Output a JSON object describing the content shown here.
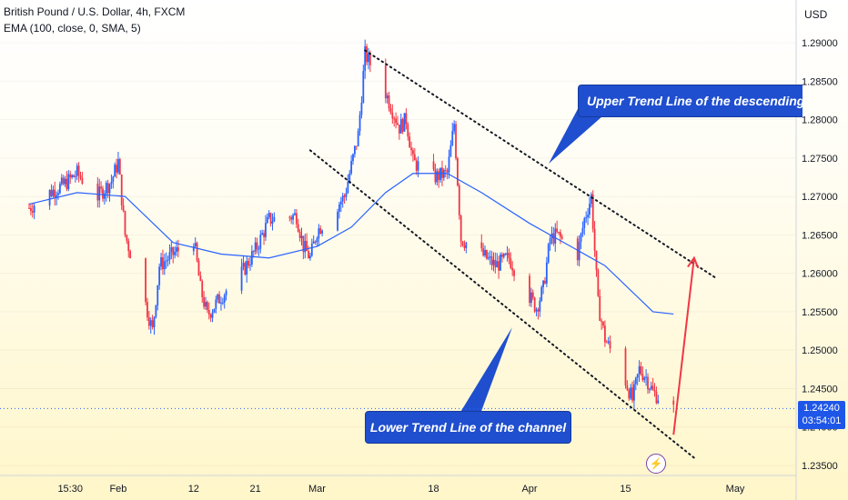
{
  "header": {
    "title": "British Pound / U.S. Dollar, 4h, FXCM",
    "indicator": "EMA (100, close, 0, SMA, 5)"
  },
  "axis": {
    "currency": "USD",
    "last_price": "1.24240",
    "countdown": "03:54:01"
  },
  "annotations": {
    "upper": "Upper Trend Line of the descending",
    "lower": "Lower Trend Line of the channel"
  },
  "colors": {
    "up": "#2962ff",
    "down": "#f23645",
    "ema": "#2962ff",
    "label_bg": "#1f4fcf",
    "arrow": "#f23645"
  },
  "chart_data": {
    "type": "candlestick",
    "symbol": "GBPUSD",
    "timeframe": "4h",
    "ylim": [
      1.2335,
      1.2915
    ],
    "yticks": [
      "1.29000",
      "1.28500",
      "1.28000",
      "1.27500",
      "1.27000",
      "1.26500",
      "1.26000",
      "1.25500",
      "1.25000",
      "1.24500",
      "1.24000",
      "1.23500"
    ],
    "xticks": [
      {
        "label": "15:30",
        "date": "2024-01-25"
      },
      {
        "label": "Feb",
        "date": "2024-02-01"
      },
      {
        "label": "12",
        "date": "2024-02-12"
      },
      {
        "label": "21",
        "date": "2024-02-21"
      },
      {
        "label": "Mar",
        "date": "2024-03-01"
      },
      {
        "label": "18",
        "date": "2024-03-18"
      },
      {
        "label": "Apr",
        "date": "2024-04-01"
      },
      {
        "label": "15",
        "date": "2024-04-15"
      },
      {
        "label": "May",
        "date": "2024-05-01"
      }
    ],
    "xlim": [
      "2024-01-19",
      "2024-05-14"
    ],
    "price_path": [
      [
        "2024-01-19",
        1.2685
      ],
      [
        "2024-01-22",
        1.2705
      ],
      [
        "2024-01-24",
        1.2715
      ],
      [
        "2024-01-26",
        1.273
      ],
      [
        "2024-01-29",
        1.27
      ],
      [
        "2024-01-31",
        1.272
      ],
      [
        "2024-02-01",
        1.2745
      ],
      [
        "2024-02-02",
        1.265
      ],
      [
        "2024-02-05",
        1.256
      ],
      [
        "2024-02-06",
        1.2525
      ],
      [
        "2024-02-07",
        1.261
      ],
      [
        "2024-02-09",
        1.2625
      ],
      [
        "2024-02-12",
        1.2645
      ],
      [
        "2024-02-13",
        1.258
      ],
      [
        "2024-02-14",
        1.2545
      ],
      [
        "2024-02-16",
        1.257
      ],
      [
        "2024-02-19",
        1.26
      ],
      [
        "2024-02-21",
        1.263
      ],
      [
        "2024-02-23",
        1.267
      ],
      [
        "2024-02-27",
        1.2675
      ],
      [
        "2024-02-28",
        1.2635
      ],
      [
        "2024-02-29",
        1.262
      ],
      [
        "2024-03-01",
        1.2655
      ],
      [
        "2024-03-05",
        1.27
      ],
      [
        "2024-03-07",
        1.278
      ],
      [
        "2024-03-08",
        1.2885
      ],
      [
        "2024-03-11",
        1.2835
      ],
      [
        "2024-03-13",
        1.279
      ],
      [
        "2024-03-14",
        1.28
      ],
      [
        "2024-03-15",
        1.2745
      ],
      [
        "2024-03-18",
        1.2725
      ],
      [
        "2024-03-20",
        1.273
      ],
      [
        "2024-03-21",
        1.2795
      ],
      [
        "2024-03-22",
        1.2645
      ],
      [
        "2024-03-25",
        1.2625
      ],
      [
        "2024-03-27",
        1.261
      ],
      [
        "2024-03-29",
        1.262
      ],
      [
        "2024-04-01",
        1.257
      ],
      [
        "2024-04-02",
        1.2555
      ],
      [
        "2024-04-03",
        1.258
      ],
      [
        "2024-04-04",
        1.2645
      ],
      [
        "2024-04-05",
        1.265
      ],
      [
        "2024-04-08",
        1.2625
      ],
      [
        "2024-04-09",
        1.267
      ],
      [
        "2024-04-10",
        1.27
      ],
      [
        "2024-04-11",
        1.256
      ],
      [
        "2024-04-12",
        1.2515
      ],
      [
        "2024-04-15",
        1.246
      ],
      [
        "2024-04-16",
        1.2435
      ],
      [
        "2024-04-17",
        1.2475
      ],
      [
        "2024-04-18",
        1.2465
      ],
      [
        "2024-04-19",
        1.2445
      ],
      [
        "2024-04-22",
        1.2424
      ]
    ],
    "ema_100": [
      [
        "2024-01-19",
        1.269
      ],
      [
        "2024-01-26",
        1.2705
      ],
      [
        "2024-02-02",
        1.27
      ],
      [
        "2024-02-09",
        1.264
      ],
      [
        "2024-02-16",
        1.2625
      ],
      [
        "2024-02-23",
        1.262
      ],
      [
        "2024-03-01",
        1.2635
      ],
      [
        "2024-03-06",
        1.266
      ],
      [
        "2024-03-11",
        1.2705
      ],
      [
        "2024-03-15",
        1.273
      ],
      [
        "2024-03-20",
        1.273
      ],
      [
        "2024-03-25",
        1.2705
      ],
      [
        "2024-04-01",
        1.2665
      ],
      [
        "2024-04-08",
        1.263
      ],
      [
        "2024-04-12",
        1.261
      ],
      [
        "2024-04-19",
        1.255
      ],
      [
        "2024-04-22",
        1.2547
      ]
    ],
    "trendlines": {
      "upper": [
        [
          "2024-03-08",
          1.289
        ],
        [
          "2024-04-28",
          1.2595
        ]
      ],
      "lower": [
        [
          "2024-02-29",
          1.276
        ],
        [
          "2024-04-25",
          1.236
        ]
      ]
    },
    "projection_arrow": [
      [
        "2024-04-22",
        1.239
      ],
      [
        "2024-04-25",
        1.262
      ]
    ]
  }
}
